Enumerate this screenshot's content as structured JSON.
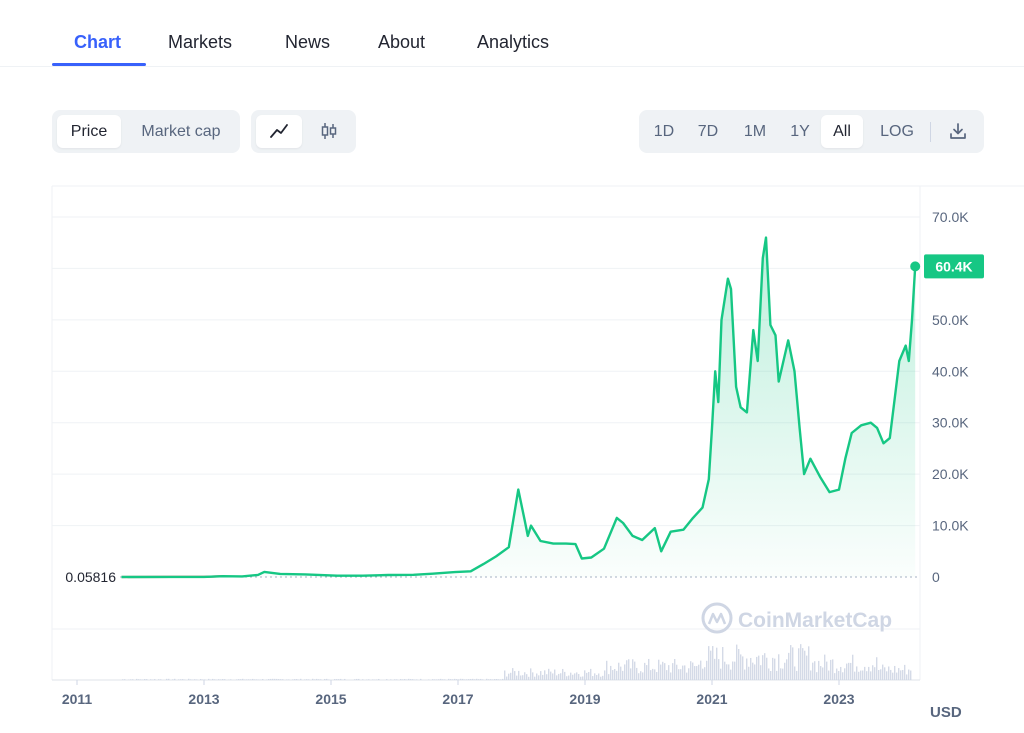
{
  "nav": {
    "tabs": [
      {
        "label": "Chart",
        "active": true
      },
      {
        "label": "Markets",
        "active": false
      },
      {
        "label": "News",
        "active": false
      },
      {
        "label": "About",
        "active": false
      },
      {
        "label": "Analytics",
        "active": false
      }
    ]
  },
  "toolbar": {
    "metric_options": [
      "Price",
      "Market cap"
    ],
    "metric_selected": "Price",
    "view_icons": [
      "line-chart-icon",
      "candlestick-icon"
    ],
    "view_selected": "line-chart-icon",
    "ranges": [
      "1D",
      "7D",
      "1M",
      "1Y",
      "All"
    ],
    "range_selected": "All",
    "log_label": "LOG",
    "download_icon": "download-icon"
  },
  "colors": {
    "accent": "#3861fb",
    "line": "#16c784",
    "early_line": "#ea3943",
    "muted": "#58667e"
  },
  "chart_data": {
    "type": "area",
    "xlim": [
      2011,
      2024.3
    ],
    "ylim": [
      0,
      75000
    ],
    "x_ticks": [
      "2011",
      "2013",
      "2015",
      "2017",
      "2019",
      "2021",
      "2023"
    ],
    "y_ticks": [
      "0",
      "10.0K",
      "20.0K",
      "30.0K",
      "40.0K",
      "50.0K",
      "60.0K",
      "70.0K"
    ],
    "y_tick_values": [
      0,
      10000,
      20000,
      30000,
      40000,
      50000,
      60000,
      70000
    ],
    "currency_label": "USD",
    "start_value_label": "0.05816",
    "current_value_label": "60.4K",
    "watermark": "CoinMarketCap",
    "series": [
      {
        "values": [
          [
            2011.7,
            5
          ],
          [
            2012.5,
            10
          ],
          [
            2013.0,
            15
          ],
          [
            2013.3,
            150
          ],
          [
            2013.6,
            120
          ],
          [
            2013.85,
            400
          ],
          [
            2013.95,
            1000
          ],
          [
            2014.2,
            600
          ],
          [
            2014.6,
            500
          ],
          [
            2014.9,
            350
          ],
          [
            2015.1,
            250
          ],
          [
            2015.5,
            260
          ],
          [
            2015.9,
            380
          ],
          [
            2016.3,
            420
          ],
          [
            2016.6,
            650
          ],
          [
            2016.95,
            960
          ],
          [
            2017.2,
            1100
          ],
          [
            2017.4,
            2500
          ],
          [
            2017.6,
            4000
          ],
          [
            2017.8,
            5800
          ],
          [
            2017.95,
            17000
          ],
          [
            2018.05,
            11000
          ],
          [
            2018.1,
            8000
          ],
          [
            2018.15,
            10000
          ],
          [
            2018.3,
            7000
          ],
          [
            2018.5,
            6500
          ],
          [
            2018.7,
            6500
          ],
          [
            2018.85,
            6400
          ],
          [
            2018.95,
            3600
          ],
          [
            2019.1,
            3800
          ],
          [
            2019.3,
            5500
          ],
          [
            2019.5,
            11500
          ],
          [
            2019.6,
            10500
          ],
          [
            2019.75,
            8000
          ],
          [
            2019.9,
            7200
          ],
          [
            2020.1,
            9500
          ],
          [
            2020.2,
            5000
          ],
          [
            2020.35,
            8800
          ],
          [
            2020.55,
            9200
          ],
          [
            2020.7,
            11500
          ],
          [
            2020.85,
            13500
          ],
          [
            2020.95,
            19000
          ],
          [
            2021.0,
            29000
          ],
          [
            2021.05,
            40000
          ],
          [
            2021.1,
            34000
          ],
          [
            2021.15,
            50000
          ],
          [
            2021.25,
            58000
          ],
          [
            2021.3,
            56000
          ],
          [
            2021.38,
            37000
          ],
          [
            2021.45,
            33000
          ],
          [
            2021.55,
            32000
          ],
          [
            2021.65,
            48000
          ],
          [
            2021.72,
            42000
          ],
          [
            2021.8,
            62000
          ],
          [
            2021.85,
            66000
          ],
          [
            2021.92,
            49000
          ],
          [
            2022.0,
            47000
          ],
          [
            2022.05,
            38000
          ],
          [
            2022.2,
            46000
          ],
          [
            2022.3,
            40000
          ],
          [
            2022.38,
            29000
          ],
          [
            2022.45,
            20000
          ],
          [
            2022.55,
            23000
          ],
          [
            2022.7,
            19500
          ],
          [
            2022.85,
            16500
          ],
          [
            2023.0,
            17000
          ],
          [
            2023.1,
            23000
          ],
          [
            2023.2,
            28000
          ],
          [
            2023.35,
            29500
          ],
          [
            2023.5,
            30000
          ],
          [
            2023.6,
            29000
          ],
          [
            2023.7,
            26000
          ],
          [
            2023.8,
            27000
          ],
          [
            2023.88,
            35000
          ],
          [
            2023.95,
            42000
          ],
          [
            2024.05,
            45000
          ],
          [
            2024.1,
            42000
          ],
          [
            2024.15,
            50000
          ],
          [
            2024.2,
            60400
          ]
        ]
      }
    ]
  }
}
